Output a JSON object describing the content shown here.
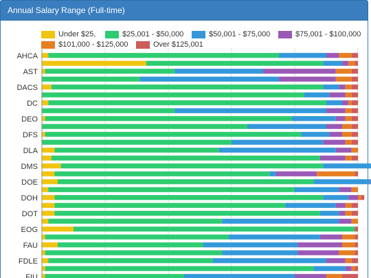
{
  "panel": {
    "title": "Annual Salary Range (Full-time)"
  },
  "chart_data": {
    "type": "bar",
    "orientation": "horizontal",
    "stacked": true,
    "normalized": true,
    "title": "Annual Salary Range (Full-time)",
    "xlabel": "",
    "ylabel": "",
    "xlim": [
      0,
      100
    ],
    "grid": true,
    "legend_position": "top",
    "categories": [
      "AHCA",
      "",
      "AST",
      "",
      "DACS",
      "",
      "DC",
      "",
      "DEO",
      "",
      "DFS",
      "",
      "DLA",
      "",
      "DMS",
      "",
      "DOE",
      "",
      "DOH",
      "",
      "DOT",
      "",
      "EOG",
      "",
      "FAU",
      "",
      "FDLE",
      "",
      "FIU"
    ],
    "series": [
      {
        "name": "Under $25,",
        "color": "#f1c40f",
        "values": [
          2,
          33,
          1,
          0,
          3,
          0,
          2,
          0,
          1,
          0,
          1,
          0,
          4,
          3,
          6,
          4,
          5,
          2,
          4,
          4,
          4,
          2,
          10,
          1,
          5,
          1,
          2,
          1,
          1
        ]
      },
      {
        "name": "$25,001 - $50,000",
        "color": "#2ecc71",
        "values": [
          73,
          56,
          41,
          31,
          86,
          83,
          88,
          42,
          78,
          65,
          81,
          60,
          52,
          85,
          83,
          68,
          81,
          78,
          85,
          73,
          84,
          55,
          89,
          58,
          46,
          56,
          52,
          85,
          44
        ]
      },
      {
        "name": "$50,001 - $75,000",
        "color": "#3498db",
        "values": [
          15,
          6,
          28,
          44,
          5,
          8,
          5,
          48,
          14,
          25,
          9,
          29,
          37,
          0,
          25,
          2,
          18,
          14,
          8,
          16,
          6,
          37,
          0,
          29,
          30,
          24,
          36,
          10,
          35
        ]
      },
      {
        "name": "$75,001 - $100,000",
        "color": "#9b59b6",
        "values": [
          4,
          2,
          23,
          18,
          2,
          5,
          2,
          6,
          3,
          5,
          4,
          7,
          5,
          8,
          4,
          13,
          3,
          4,
          3,
          3,
          2,
          4,
          0,
          7,
          14,
          13,
          6,
          2,
          10
        ]
      },
      {
        "name": "$101,000 - $125,000",
        "color": "#e67e22",
        "values": [
          4,
          2,
          5,
          5,
          2,
          2,
          1,
          2,
          2,
          3,
          3,
          2,
          2,
          2,
          3,
          12,
          2,
          2,
          1,
          2,
          2,
          2,
          0,
          4,
          4,
          5,
          2,
          1,
          5
        ]
      },
      {
        "name": "Over $125,001",
        "color": "#cd5c5c",
        "values": [
          2,
          1,
          2,
          2,
          2,
          2,
          2,
          2,
          2,
          2,
          2,
          2,
          0,
          2,
          1,
          1,
          1,
          0,
          1,
          2,
          2,
          0,
          1,
          1,
          1,
          1,
          2,
          1,
          5
        ]
      }
    ]
  }
}
